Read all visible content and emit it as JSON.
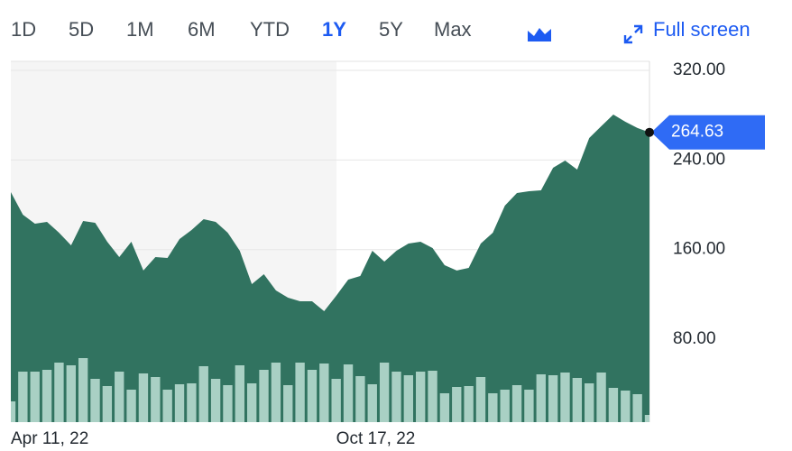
{
  "toolbar": {
    "tabs": [
      "1D",
      "5D",
      "1M",
      "6M",
      "YTD",
      "1Y",
      "5Y",
      "Max"
    ],
    "active_tab": 5,
    "full_screen": "Full screen"
  },
  "chart_data": {
    "type": "area",
    "color": "#317360",
    "categories": [
      "Apr 11, 22",
      null,
      null,
      null,
      null,
      null,
      null,
      null,
      null,
      null,
      null,
      null,
      null,
      null,
      null,
      null,
      null,
      null,
      null,
      null,
      null,
      null,
      null,
      null,
      null,
      null,
      null,
      "Oct 17, 22",
      null,
      null,
      null,
      null,
      null,
      null,
      null,
      null,
      null,
      null,
      null,
      null,
      null,
      null,
      null,
      null,
      null,
      null,
      null,
      null,
      null,
      null,
      null,
      null,
      null,
      null
    ],
    "values": [
      211.3,
      191.2,
      183.1,
      184.7,
      175.1,
      163.8,
      185.5,
      183.9,
      167,
      153.3,
      167,
      141.3,
      153.3,
      152.5,
      169.4,
      177.5,
      187.1,
      184.7,
      175.1,
      159,
      129.2,
      138,
      123.5,
      117.1,
      113.9,
      113.9,
      105,
      118.7,
      133.2,
      136.4,
      159,
      149.3,
      159,
      165.4,
      167,
      161.4,
      146.1,
      141.3,
      143.7,
      165.4,
      175.1,
      199.2,
      210.5,
      212.1,
      212.9,
      233,
      239.5,
      231.4,
      259.6,
      270.1,
      280.5,
      274.1,
      268.5,
      264.63
    ],
    "ylim": [
      6,
      328
    ],
    "yticks": [
      {
        "value": 80,
        "label": "80.00"
      },
      {
        "value": 160,
        "label": "160.00"
      },
      {
        "value": 240,
        "label": "240.00"
      },
      {
        "value": 320,
        "label": "320.00"
      }
    ],
    "grid": true,
    "volume": {
      "color": "#a9d0c4",
      "axis": "y2",
      "values": [
        23,
        56,
        56,
        58,
        66,
        63,
        71,
        48,
        40,
        56,
        36,
        54,
        50,
        36,
        42,
        43,
        62,
        48,
        41,
        63,
        43,
        58,
        66,
        41,
        66,
        58,
        65,
        48,
        64,
        51,
        42,
        66,
        56,
        52,
        56,
        57,
        32,
        39,
        40,
        50,
        32,
        36,
        41,
        36,
        53,
        52,
        55,
        49,
        43,
        55,
        38,
        35,
        31,
        8
      ]
    },
    "y2lim": [
      0,
      400
    ],
    "last_label_color": "#2f6bf5"
  }
}
